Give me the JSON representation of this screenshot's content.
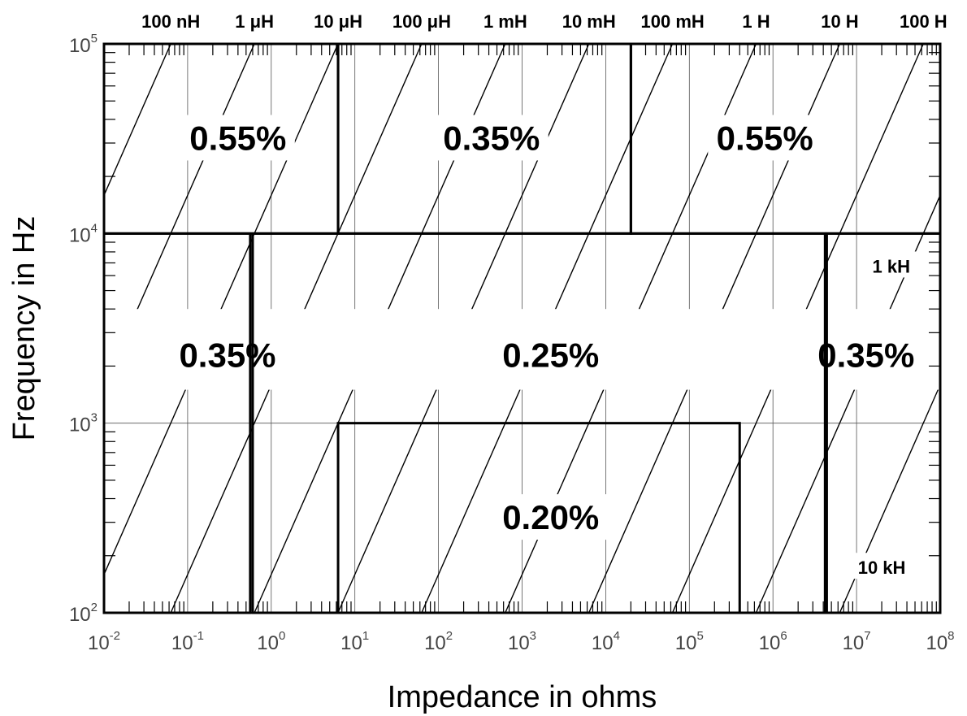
{
  "chart_data": {
    "type": "line",
    "xlabel": "Impedance in ohms",
    "ylabel": "Frequency in Hz",
    "x_scale": "log",
    "y_scale": "log",
    "xlim": [
      0.01,
      100000000
    ],
    "ylim": [
      100,
      100000
    ],
    "x_ticks": [
      {
        "base": "10",
        "exp": "-2",
        "value": 0.01
      },
      {
        "base": "10",
        "exp": "-1",
        "value": 0.1
      },
      {
        "base": "10",
        "exp": "0",
        "value": 1
      },
      {
        "base": "10",
        "exp": "1",
        "value": 10
      },
      {
        "base": "10",
        "exp": "2",
        "value": 100
      },
      {
        "base": "10",
        "exp": "3",
        "value": 1000
      },
      {
        "base": "10",
        "exp": "4",
        "value": 10000
      },
      {
        "base": "10",
        "exp": "5",
        "value": 100000
      },
      {
        "base": "10",
        "exp": "6",
        "value": 1000000
      },
      {
        "base": "10",
        "exp": "7",
        "value": 10000000
      },
      {
        "base": "10",
        "exp": "8",
        "value": 100000000
      }
    ],
    "y_ticks": [
      {
        "base": "10",
        "exp": "2",
        "value": 100
      },
      {
        "base": "10",
        "exp": "3",
        "value": 1000
      },
      {
        "base": "10",
        "exp": "4",
        "value": 10000
      },
      {
        "base": "10",
        "exp": "5",
        "value": 100000
      }
    ],
    "inductance_labels": [
      {
        "text": "100 nH",
        "z_at_top": 0.063
      },
      {
        "text": "1 μH",
        "z_at_top": 0.63
      },
      {
        "text": "10 μH",
        "z_at_top": 6.3
      },
      {
        "text": "100 μH",
        "z_at_top": 63
      },
      {
        "text": "1 mH",
        "z_at_top": 630
      },
      {
        "text": "10 mH",
        "z_at_top": 6300
      },
      {
        "text": "100 mH",
        "z_at_top": 63000
      },
      {
        "text": "1 H",
        "z_at_top": 630000
      },
      {
        "text": "10 H",
        "z_at_top": 6300000
      },
      {
        "text": "100 H",
        "z_at_top": 63000000
      }
    ],
    "inductance_lines_henry": [
      1e-08,
      1e-07,
      1e-06,
      1e-05,
      0.0001,
      0.001,
      0.01,
      0.1,
      1,
      10,
      100,
      1000,
      10000
    ],
    "regions": [
      {
        "label": "0.55%",
        "z": [
          0.01,
          6.3
        ],
        "f": [
          10000,
          100000
        ],
        "label_at": {
          "z": 0.4,
          "f": 32000
        }
      },
      {
        "label": "0.35%",
        "z": [
          6.3,
          20000
        ],
        "f": [
          10000,
          100000
        ],
        "label_at": {
          "z": 430,
          "f": 32000
        }
      },
      {
        "label": "0.55%",
        "z": [
          20000,
          100000000
        ],
        "f": [
          10000,
          100000
        ],
        "label_at": {
          "z": 800000,
          "f": 32000
        }
      },
      {
        "label": "0.35%",
        "z": [
          0.01,
          0.56
        ],
        "f": [
          100,
          10000
        ],
        "label_at": {
          "z": 0.3,
          "f": 2300
        }
      },
      {
        "label": "0.25%",
        "z": [
          0.6,
          4200000
        ],
        "f": [
          100,
          10000
        ],
        "label_at": {
          "z": 2200,
          "f": 2300
        }
      },
      {
        "label": "0.35%",
        "z": [
          4400000,
          100000000
        ],
        "f": [
          100,
          10000
        ],
        "label_at": {
          "z": 13000000,
          "f": 2300
        }
      },
      {
        "label": "0.20%",
        "z": [
          6.3,
          400000
        ],
        "f": [
          100,
          1000
        ],
        "label_at": {
          "z": 2200,
          "f": 320
        }
      }
    ],
    "annotations": [
      {
        "text": "1 kH",
        "z": 26000000,
        "f": 6600
      },
      {
        "text": "10 kH",
        "z": 20000000,
        "f": 170
      }
    ],
    "grid": true
  }
}
